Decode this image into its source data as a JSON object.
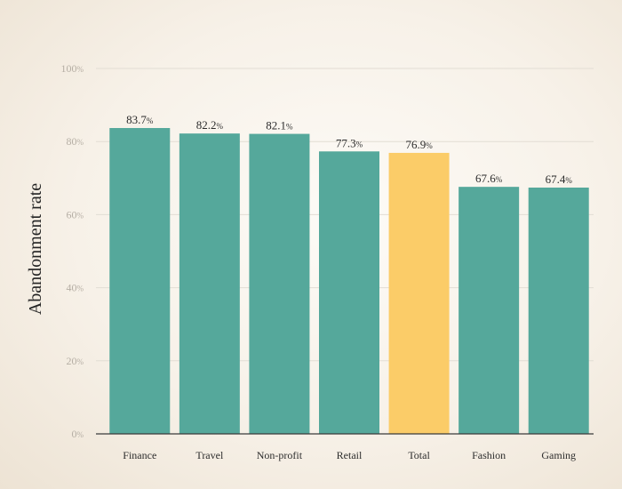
{
  "chart_data": {
    "type": "bar",
    "title": "",
    "xlabel": "",
    "ylabel": "Abandonment rate",
    "categories": [
      "Finance",
      "Travel",
      "Non-profit",
      "Retail",
      "Total",
      "Fashion",
      "Gaming"
    ],
    "values": [
      83.7,
      82.2,
      82.1,
      77.3,
      76.9,
      67.6,
      67.4
    ],
    "value_unit": "%",
    "ylim": [
      0,
      100
    ],
    "yticks": [
      0,
      20,
      40,
      60,
      80,
      100
    ],
    "tick_unit": "%",
    "highlight_category": "Total",
    "grid": true,
    "colors": {
      "bar": "#55a89b",
      "highlight": "#fbcc68",
      "grid": "#e2ddd4",
      "axis": "#3a3a3a"
    }
  }
}
